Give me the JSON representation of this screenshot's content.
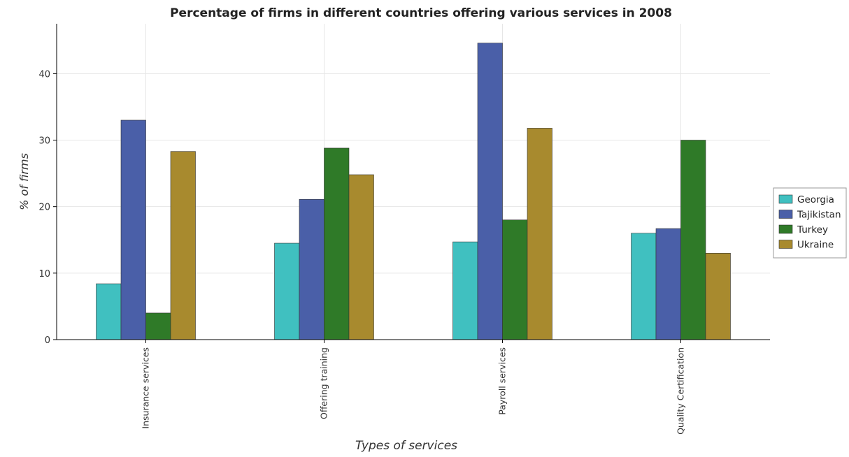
{
  "chart_data": {
    "type": "bar",
    "title": "Percentage of firms in different countries offering various services in 2008",
    "xlabel": "Types of services",
    "ylabel": "% of firms",
    "ylim": [
      0,
      47.5
    ],
    "yticks": [
      0,
      10,
      20,
      30,
      40
    ],
    "grid": true,
    "legend_position": "right",
    "categories": [
      "Insurance services",
      "Offering training",
      "Payroll services",
      "Quality Certification"
    ],
    "series": [
      {
        "name": "Georgia",
        "color": "#40c0c0",
        "values": [
          8.4,
          14.5,
          14.7,
          16.0
        ]
      },
      {
        "name": "Tajikistan",
        "color": "#4a5fa8",
        "values": [
          33.0,
          21.1,
          44.6,
          16.7
        ]
      },
      {
        "name": "Turkey",
        "color": "#2f7a28",
        "values": [
          4.0,
          28.8,
          18.0,
          30.0
        ]
      },
      {
        "name": "Ukraine",
        "color": "#a88a2e",
        "values": [
          28.3,
          24.8,
          31.8,
          13.0
        ]
      }
    ]
  }
}
